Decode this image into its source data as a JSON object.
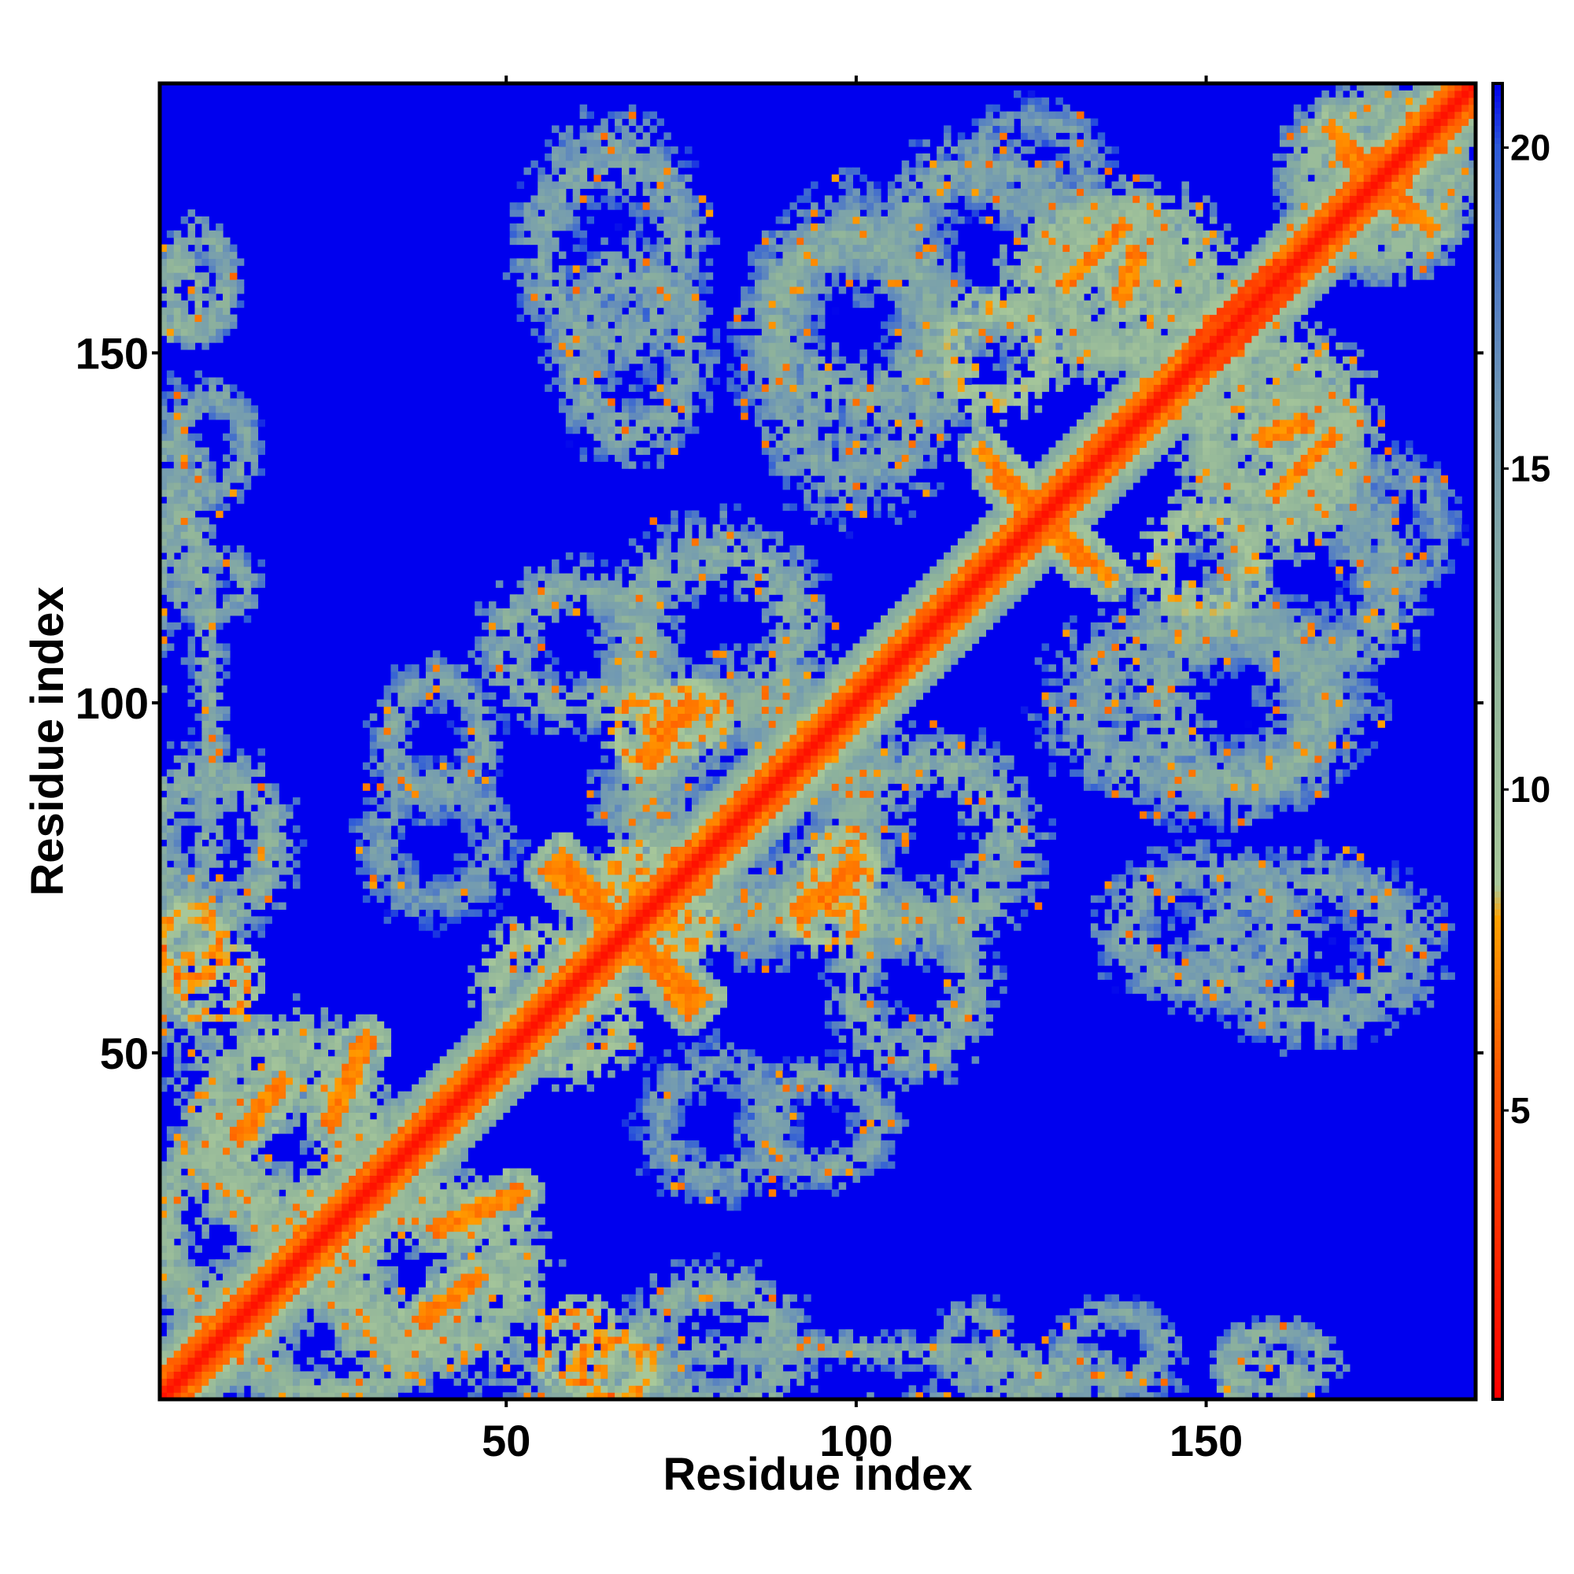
{
  "chart_data": {
    "type": "heatmap",
    "title": "",
    "xlabel": "Residue index",
    "ylabel": "Residue index",
    "n_residues": 188,
    "xlim": [
      1,
      188
    ],
    "ylim": [
      1,
      188
    ],
    "x_ticks": [
      {
        "value": 50,
        "label": "50"
      },
      {
        "value": 100,
        "label": "100"
      },
      {
        "value": 150,
        "label": "150"
      }
    ],
    "y_ticks": [
      {
        "value": 50,
        "label": "50"
      },
      {
        "value": 100,
        "label": "100"
      },
      {
        "value": 150,
        "label": "150"
      }
    ],
    "colorbar": {
      "min": 0.5,
      "max": 21,
      "background_color": "#0000ee",
      "ticks": [
        {
          "value": 5,
          "label": "5"
        },
        {
          "value": 10,
          "label": "10"
        },
        {
          "value": 15,
          "label": "15"
        },
        {
          "value": 20,
          "label": "20"
        }
      ],
      "stops": [
        {
          "value": 0.5,
          "color": "#ff0000"
        },
        {
          "value": 5.5,
          "color": "#ff5500"
        },
        {
          "value": 8,
          "color": "#ffa000"
        },
        {
          "value": 8.5,
          "color": "#a8c89a"
        },
        {
          "value": 12,
          "color": "#90b49a"
        },
        {
          "value": 16,
          "color": "#6f97b4"
        },
        {
          "value": 20,
          "color": "#2e5bd8"
        },
        {
          "value": 21,
          "color": "#0000ee"
        }
      ]
    },
    "diagonal_value": 1.5,
    "contact_features": [
      {
        "x": 20,
        "y": 35,
        "sx": 14,
        "sy": 12,
        "v": 10
      },
      {
        "x": 40,
        "y": 18,
        "sx": 14,
        "sy": 12,
        "v": 10
      },
      {
        "x": 8,
        "y": 25,
        "sx": 8,
        "sy": 14,
        "v": 11
      },
      {
        "x": 25,
        "y": 8,
        "sx": 14,
        "sy": 8,
        "v": 11
      },
      {
        "x": 3,
        "y": 95,
        "sx": 6,
        "sy": 40,
        "v": 12
      },
      {
        "x": 5,
        "y": 65,
        "sx": 5,
        "sy": 6,
        "v": 6
      },
      {
        "x": 3,
        "y": 158,
        "sx": 4,
        "sy": 6,
        "v": 11
      },
      {
        "x": 3,
        "y": 133,
        "sx": 4,
        "sy": 5,
        "v": 12
      },
      {
        "x": 60,
        "y": 8,
        "sx": 6,
        "sy": 6,
        "v": 7
      },
      {
        "x": 80,
        "y": 8,
        "sx": 12,
        "sy": 10,
        "v": 12
      },
      {
        "x": 117,
        "y": 8,
        "sx": 5,
        "sy": 6,
        "v": 13
      },
      {
        "x": 137,
        "y": 8,
        "sx": 8,
        "sy": 6,
        "v": 13
      },
      {
        "x": 160,
        "y": 6,
        "sx": 8,
        "sy": 5,
        "v": 12
      },
      {
        "x": 60,
        "y": 108,
        "sx": 12,
        "sy": 10,
        "v": 12
      },
      {
        "x": 70,
        "y": 96,
        "sx": 5,
        "sy": 6,
        "v": 7
      },
      {
        "x": 85,
        "y": 85,
        "sx": 18,
        "sy": 18,
        "v": 12
      },
      {
        "x": 72,
        "y": 70,
        "sx": 8,
        "sy": 7,
        "v": 7
      },
      {
        "x": 98,
        "y": 75,
        "sx": 5,
        "sy": 6,
        "v": 7
      },
      {
        "x": 40,
        "y": 95,
        "sx": 8,
        "sy": 10,
        "v": 13
      },
      {
        "x": 65,
        "y": 165,
        "sx": 12,
        "sy": 16,
        "v": 13
      },
      {
        "x": 110,
        "y": 80,
        "sx": 14,
        "sy": 14,
        "v": 12
      },
      {
        "x": 100,
        "y": 150,
        "sx": 14,
        "sy": 20,
        "v": 13
      },
      {
        "x": 135,
        "y": 160,
        "sx": 12,
        "sy": 12,
        "v": 10
      },
      {
        "x": 160,
        "y": 140,
        "sx": 12,
        "sy": 12,
        "v": 10
      },
      {
        "x": 155,
        "y": 100,
        "sx": 14,
        "sy": 14,
        "v": 12
      },
      {
        "x": 165,
        "y": 118,
        "sx": 14,
        "sy": 14,
        "v": 13
      },
      {
        "x": 150,
        "y": 68,
        "sx": 14,
        "sy": 10,
        "v": 13
      },
      {
        "x": 175,
        "y": 175,
        "sx": 12,
        "sy": 12,
        "v": 11
      },
      {
        "x": 120,
        "y": 150,
        "sx": 8,
        "sy": 8,
        "v": 8
      },
      {
        "x": 125,
        "y": 177,
        "sx": 10,
        "sy": 8,
        "v": 14
      },
      {
        "x": 55,
        "y": 60,
        "sx": 8,
        "sy": 8,
        "v": 9
      },
      {
        "x": 80,
        "y": 40,
        "sx": 10,
        "sy": 10,
        "v": 14
      }
    ],
    "contact_ridges": [
      {
        "start": [
          118,
          136
        ],
        "end": [
          132,
          120
        ],
        "width": 1.4,
        "v": 6
      },
      {
        "start": [
          58,
          78
        ],
        "end": [
          76,
          56
        ],
        "width": 1.4,
        "v": 6
      },
      {
        "start": [
          138,
          158
        ],
        "end": [
          140,
          164
        ],
        "width": 1.4,
        "v": 6
      },
      {
        "start": [
          160,
          130
        ],
        "end": [
          168,
          138
        ],
        "width": 1.4,
        "v": 6
      },
      {
        "start": [
          25,
          40
        ],
        "end": [
          30,
          52
        ],
        "width": 1.4,
        "v": 6
      },
      {
        "start": [
          38,
          12
        ],
        "end": [
          46,
          18
        ],
        "width": 1.4,
        "v": 6
      },
      {
        "start": [
          70,
          92
        ],
        "end": [
          76,
          100
        ],
        "width": 1.4,
        "v": 6
      },
      {
        "start": [
          96,
          72
        ],
        "end": [
          100,
          78
        ],
        "width": 1.4,
        "v": 6
      },
      {
        "start": [
          170,
          178
        ],
        "end": [
          182,
          168
        ],
        "width": 1.3,
        "v": 6
      },
      {
        "start": [
          150,
          150
        ],
        "end": [
          160,
          160
        ],
        "width": 3.0,
        "v": 4
      }
    ]
  }
}
